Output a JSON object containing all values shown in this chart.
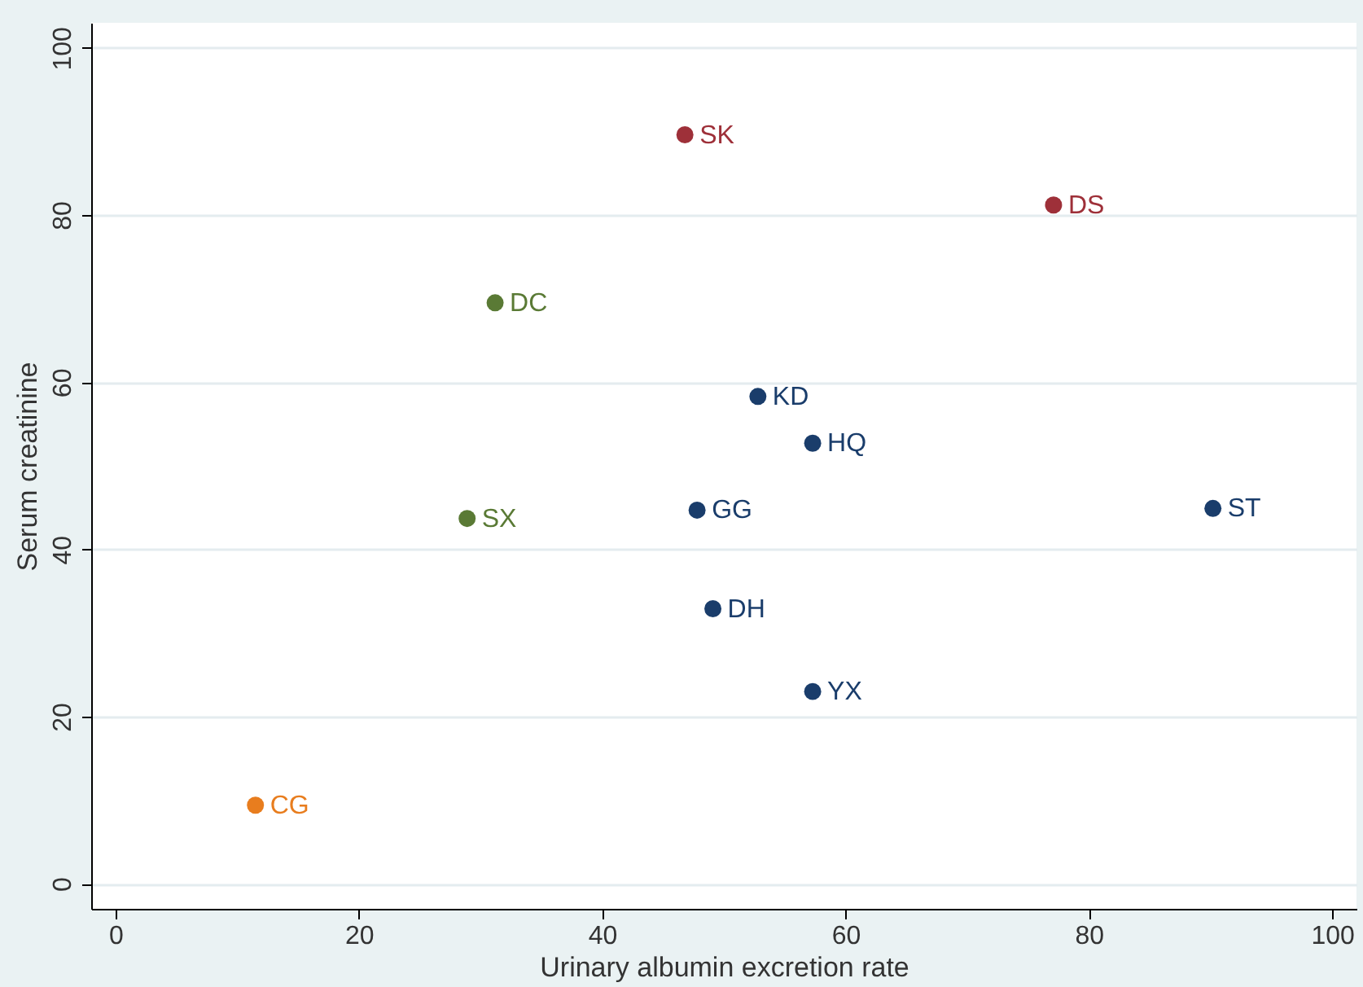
{
  "chart_data": {
    "type": "scatter",
    "xlabel": "Urinary albumin excretion rate",
    "ylabel": "Serum creatinine",
    "xlim": [
      -2,
      102
    ],
    "ylim": [
      -3,
      103
    ],
    "xticks": [
      0,
      20,
      40,
      60,
      80,
      100
    ],
    "yticks": [
      0,
      20,
      40,
      60,
      80,
      100
    ],
    "grid": "y",
    "legend": false,
    "marker": "circle",
    "series": [
      {
        "color": "#9e3039",
        "x": [
          46.8,
          77.1
        ],
        "values": [
          89.6,
          81.2
        ]
      },
      {
        "color": "#5a7a35",
        "x": [
          31.2,
          28.9
        ],
        "values": [
          69.5,
          43.7
        ]
      },
      {
        "color": "#1a3d6b",
        "x": [
          52.8,
          57.3,
          90.2,
          47.8,
          49.1,
          57.3
        ],
        "values": [
          58.3,
          52.7,
          44.9,
          44.7,
          32.9,
          23.0
        ]
      },
      {
        "color": "#e87d1e",
        "x": [
          11.5
        ],
        "values": [
          9.4
        ]
      }
    ],
    "annotations": [
      {
        "text": "SK",
        "x": 46.8,
        "y": 89.6
      },
      {
        "text": "DS",
        "x": 77.1,
        "y": 81.2
      },
      {
        "text": "DC",
        "x": 31.2,
        "y": 69.5
      },
      {
        "text": "SX",
        "x": 28.9,
        "y": 43.7
      },
      {
        "text": "KD",
        "x": 52.8,
        "y": 58.3
      },
      {
        "text": "HQ",
        "x": 57.3,
        "y": 52.7
      },
      {
        "text": "ST",
        "x": 90.2,
        "y": 44.9
      },
      {
        "text": "GG",
        "x": 47.8,
        "y": 44.7
      },
      {
        "text": "DH",
        "x": 49.1,
        "y": 32.9
      },
      {
        "text": "YX",
        "x": 57.3,
        "y": 23.0
      },
      {
        "text": "CG",
        "x": 11.5,
        "y": 9.4
      }
    ]
  }
}
